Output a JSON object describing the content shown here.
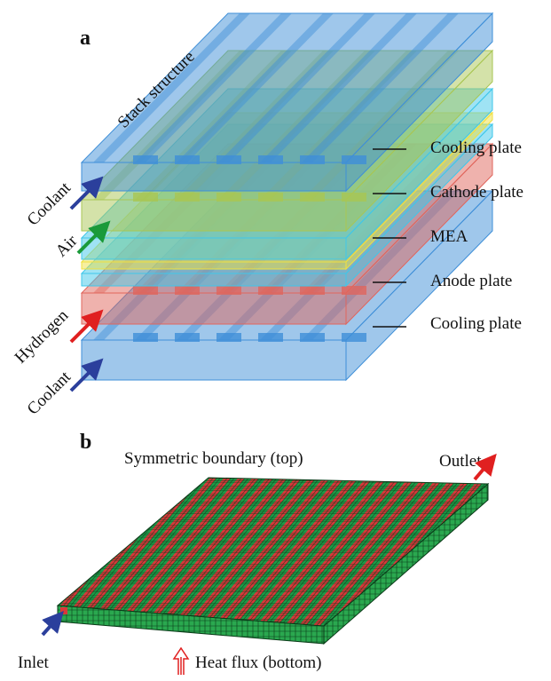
{
  "panel_a": {
    "label": "a",
    "title": "Stack structure",
    "layers": [
      "Cooling plate",
      "Cathode plate",
      "MEA",
      "Anode plate",
      "Cooling plate"
    ],
    "inputs": [
      "Coolant",
      "Air",
      "Hydrogen",
      "Coolant"
    ]
  },
  "panel_b": {
    "label": "b",
    "top": "Symmetric boundary (top)",
    "outlet": "Outlet",
    "inlet": "Inlet",
    "bottom": "Heat flux (bottom)"
  }
}
